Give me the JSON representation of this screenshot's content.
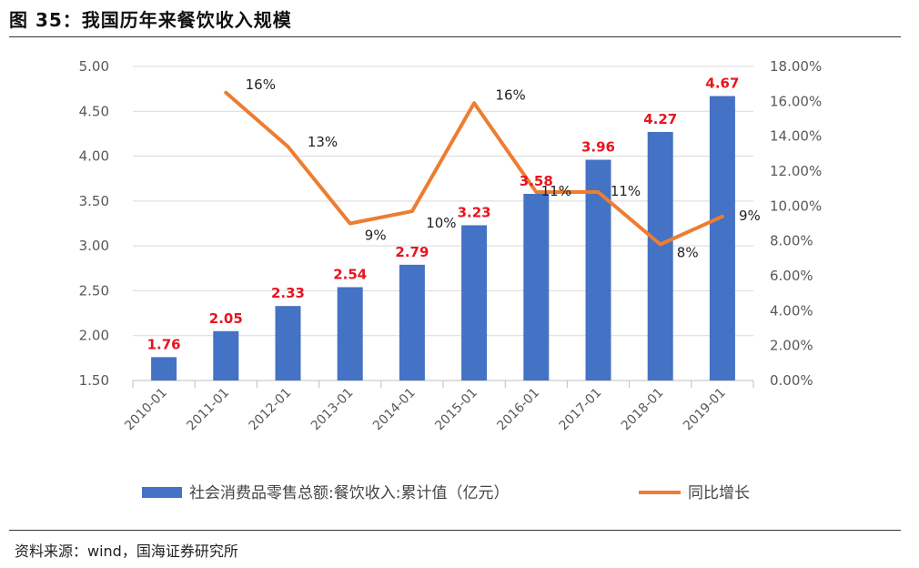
{
  "header": {
    "title": "图 35：我国历年来餐饮收入规模"
  },
  "footer": {
    "source": "资料来源：wind，国海证券研究所"
  },
  "colors": {
    "bar": "#4472c4",
    "line": "#ed7d31",
    "bar_label": "#e8141d"
  },
  "chart_data": {
    "type": "bar",
    "categories": [
      "2010-01",
      "2011-01",
      "2012-01",
      "2013-01",
      "2014-01",
      "2015-01",
      "2016-01",
      "2017-01",
      "2018-01",
      "2019-01"
    ],
    "series": [
      {
        "name": "社会消费品零售总额:餐饮收入:累计值（亿元）",
        "type": "bar",
        "axis": "left",
        "values": [
          1.76,
          2.05,
          2.33,
          2.54,
          2.79,
          3.23,
          3.58,
          3.96,
          4.27,
          4.67
        ],
        "labels": [
          "1.76",
          "2.05",
          "2.33",
          "2.54",
          "2.79",
          "3.23",
          "3.58",
          "3.96",
          "4.27",
          "4.67"
        ]
      },
      {
        "name": "同比增长",
        "type": "line",
        "axis": "right",
        "values": [
          null,
          16.5,
          13.4,
          9.0,
          9.7,
          15.9,
          10.8,
          10.8,
          7.8,
          9.4
        ],
        "labels": [
          null,
          "16%",
          "13%",
          "9%",
          "10%",
          "16%",
          "11%",
          "11%",
          "8%",
          "9%"
        ]
      }
    ],
    "y_left": {
      "min": 1.5,
      "max": 5.0,
      "ticks": [
        "1.50",
        "2.00",
        "2.50",
        "3.00",
        "3.50",
        "4.00",
        "4.50",
        "5.00"
      ]
    },
    "y_right": {
      "min": 0,
      "max": 18,
      "ticks": [
        "0.00%",
        "2.00%",
        "4.00%",
        "6.00%",
        "8.00%",
        "10.00%",
        "12.00%",
        "14.00%",
        "16.00%",
        "18.00%"
      ]
    },
    "grid": true,
    "legend": "bottom"
  }
}
